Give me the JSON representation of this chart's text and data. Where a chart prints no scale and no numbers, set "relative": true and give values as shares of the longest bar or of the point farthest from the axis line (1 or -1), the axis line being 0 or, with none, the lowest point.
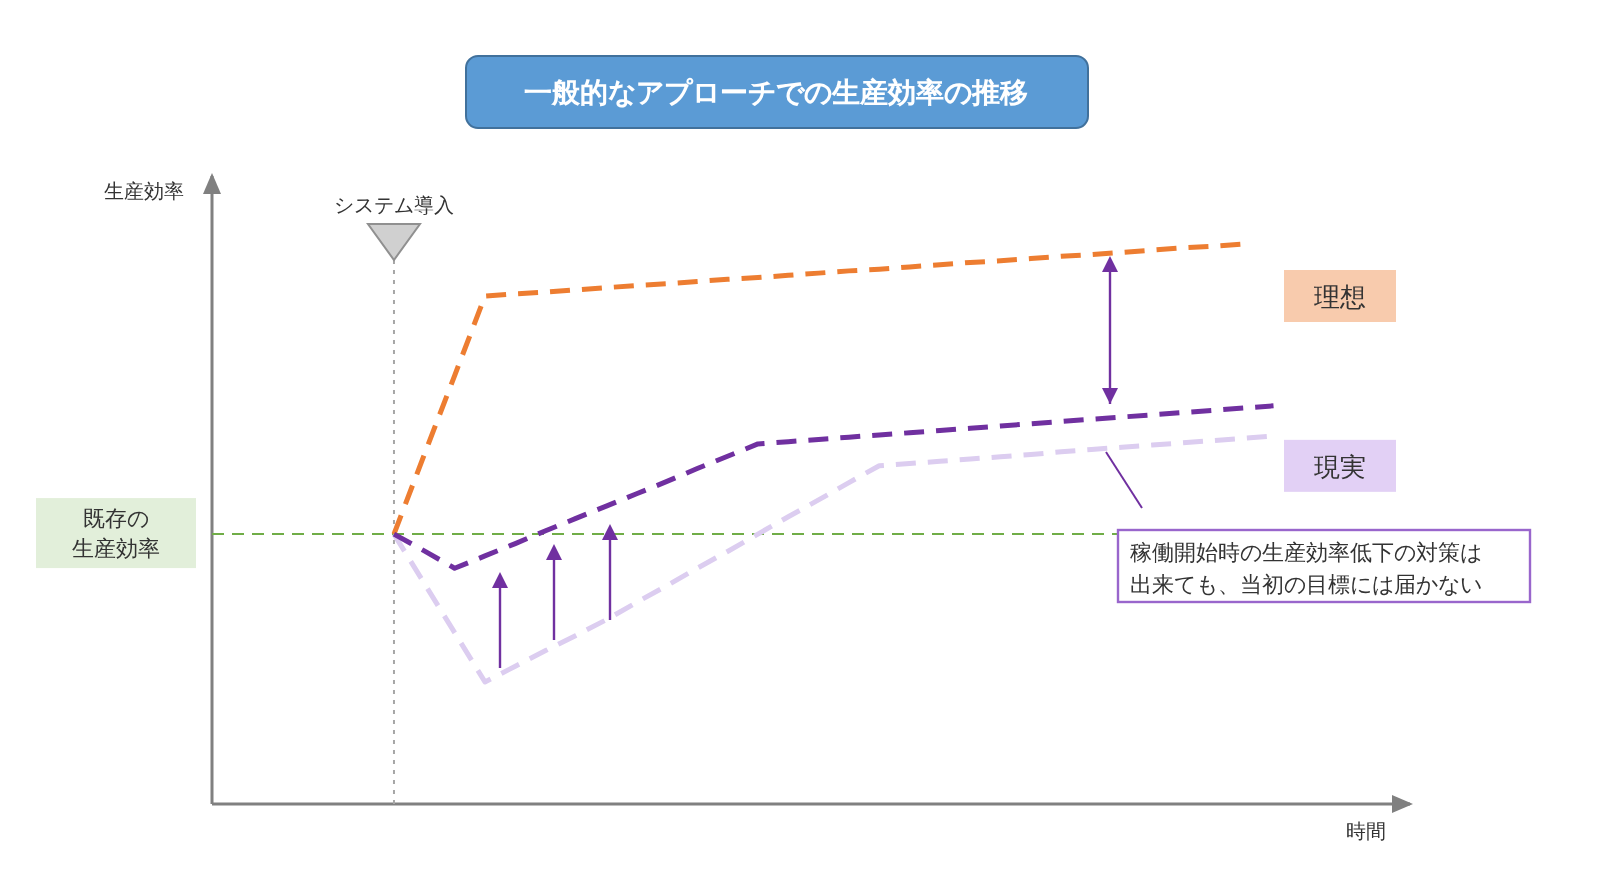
{
  "chart_data": {
    "type": "line",
    "title": "一般的なアプローチでの生産効率の推移",
    "ylabel": "生産効率",
    "xlabel": "時間",
    "relative": true,
    "line_style": "dashed",
    "marker": "none",
    "categories": [
      null,
      null,
      null,
      null,
      null,
      null,
      null,
      null,
      null,
      null,
      null,
      null,
      null,
      null,
      null,
      null,
      null,
      null,
      null,
      null,
      null,
      null,
      null,
      null,
      null,
      null,
      null,
      null,
      null,
      null,
      null,
      null,
      null,
      null,
      null,
      null,
      null,
      null,
      null,
      null
    ],
    "series": [
      {
        "name": "理想",
        "color": "#ed7d31",
        "values": [
          null,
          null,
          null,
          null,
          null,
          null,
          0.482,
          0.624,
          0.765,
          0.907,
          0.911,
          0.914,
          0.918,
          0.922,
          0.926,
          0.929,
          0.933,
          0.937,
          0.94,
          0.944,
          0.948,
          0.952,
          0.955,
          0.959,
          0.963,
          0.967,
          0.97,
          0.974,
          0.978,
          0.981,
          0.985,
          0.989,
          0.993,
          0.996,
          1.0,
          null,
          null,
          null,
          null,
          null
        ]
      },
      {
        "name": "現実",
        "color": "#7030a0",
        "values": [
          null,
          null,
          null,
          null,
          null,
          null,
          0.482,
          0.452,
          0.421,
          0.443,
          0.465,
          0.488,
          0.51,
          0.532,
          0.554,
          0.576,
          0.599,
          0.621,
          0.643,
          0.647,
          0.651,
          0.655,
          0.659,
          0.663,
          0.667,
          0.671,
          0.675,
          0.679,
          0.683,
          0.687,
          0.691,
          0.695,
          0.699,
          0.703,
          0.707,
          0.711,
          null,
          null,
          null,
          null
        ]
      },
      {
        "color": "#dccdf0",
        "values": [
          null,
          null,
          null,
          null,
          null,
          null,
          0.482,
          0.394,
          0.306,
          0.218,
          0.246,
          0.274,
          0.301,
          0.329,
          0.36,
          0.39,
          0.421,
          0.451,
          0.482,
          0.513,
          0.543,
          0.574,
          0.604,
          0.608,
          0.612,
          0.616,
          0.62,
          0.624,
          0.629,
          0.633,
          0.637,
          0.641,
          0.645,
          0.649,
          0.653,
          0.657,
          null,
          null,
          null,
          null
        ]
      }
    ],
    "ref_lines": [
      {
        "axis": "y",
        "value": 0.482,
        "label": "既存の生産効率",
        "color": "#70ad47",
        "line_style": "dashed"
      }
    ],
    "annotations": [
      "システム導入",
      "稼働開始時の生産効率低下の対策は出来ても、当初の目標には届かない"
    ]
  }
}
